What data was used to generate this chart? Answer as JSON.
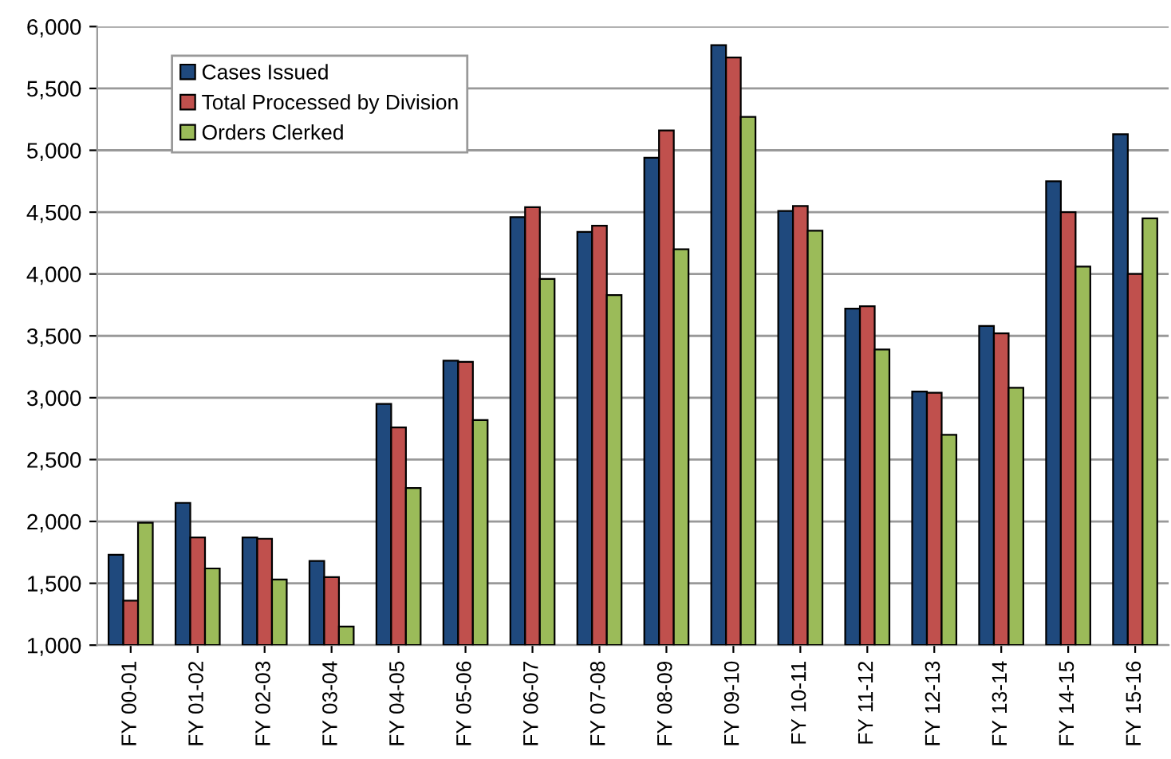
{
  "chart_data": {
    "type": "bar",
    "categories": [
      "FY 00-01",
      "FY 01-02",
      "FY 02-03",
      "FY 03-04",
      "FY 04-05",
      "FY 05-06",
      "FY 06-07",
      "FY 07-08",
      "FY 08-09",
      "FY 09-10",
      "FY 10-11",
      "FY 11-12",
      "FY 12-13",
      "FY 13-14",
      "FY 14-15",
      "FY 15-16"
    ],
    "series": [
      {
        "name": "Cases Issued",
        "color": "#1f497d",
        "values": [
          1730,
          2150,
          1870,
          1680,
          2950,
          3300,
          4460,
          4340,
          4940,
          5850,
          4510,
          3720,
          3050,
          3580,
          4750,
          5130
        ]
      },
      {
        "name": "Total Processed by Division",
        "color": "#c0504d",
        "values": [
          1360,
          1870,
          1860,
          1550,
          2760,
          3290,
          4540,
          4390,
          5160,
          5750,
          4550,
          3740,
          3040,
          3520,
          4500,
          4000
        ]
      },
      {
        "name": "Orders Clerked",
        "color": "#9bbb59",
        "values": [
          1990,
          1620,
          1530,
          1150,
          2270,
          2820,
          3960,
          3830,
          4200,
          5270,
          4350,
          3390,
          2700,
          3080,
          4060,
          4450
        ]
      }
    ],
    "ylim": [
      1000,
      6000
    ],
    "yticks": [
      {
        "value": 1000,
        "label": "1,000"
      },
      {
        "value": 1500,
        "label": "1,500"
      },
      {
        "value": 2000,
        "label": "2,000"
      },
      {
        "value": 2500,
        "label": "2,500"
      },
      {
        "value": 3000,
        "label": "3,000"
      },
      {
        "value": 3500,
        "label": "3,500"
      },
      {
        "value": 4000,
        "label": "4,000"
      },
      {
        "value": 4500,
        "label": "4,500"
      },
      {
        "value": 5000,
        "label": "5,000"
      },
      {
        "value": 5500,
        "label": "5,500"
      },
      {
        "value": 6000,
        "label": "6,000"
      }
    ],
    "grid": "y",
    "legend": "top left"
  }
}
